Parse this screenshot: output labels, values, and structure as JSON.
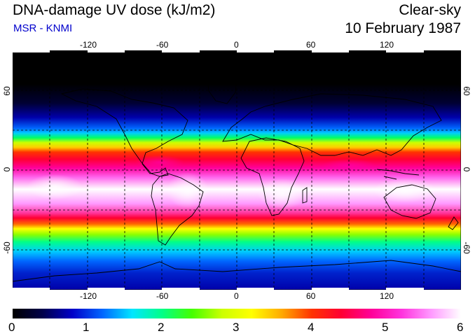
{
  "header": {
    "title": "DNA-damage UV dose (kJ/m2)",
    "subtitle": "MSR - KNMI",
    "condition": "Clear-sky",
    "date": "10 February 1987"
  },
  "map": {
    "lon_ticks": [
      "-120",
      "-60",
      "0",
      "60",
      "120"
    ],
    "lat_ticks": [
      "60",
      "0",
      "-60"
    ],
    "lon_range": [
      -180,
      180
    ],
    "lat_range": [
      -90,
      90
    ]
  },
  "colorbar": {
    "labels": [
      "0",
      "1",
      "2",
      "3",
      "4",
      "5",
      "6"
    ],
    "range": [
      0,
      6
    ],
    "colors": [
      "#000000",
      "#00004a",
      "#0000c8",
      "#0066ff",
      "#00e6ff",
      "#00ff88",
      "#44ff00",
      "#ccff00",
      "#ffff00",
      "#ffaa00",
      "#ff3300",
      "#ff0033",
      "#ff0099",
      "#ff33dd",
      "#ff99ff",
      "#ffffff"
    ]
  },
  "colors": {
    "subtitle": "#0000cc",
    "coast": "#000000",
    "grid": "#000000"
  }
}
